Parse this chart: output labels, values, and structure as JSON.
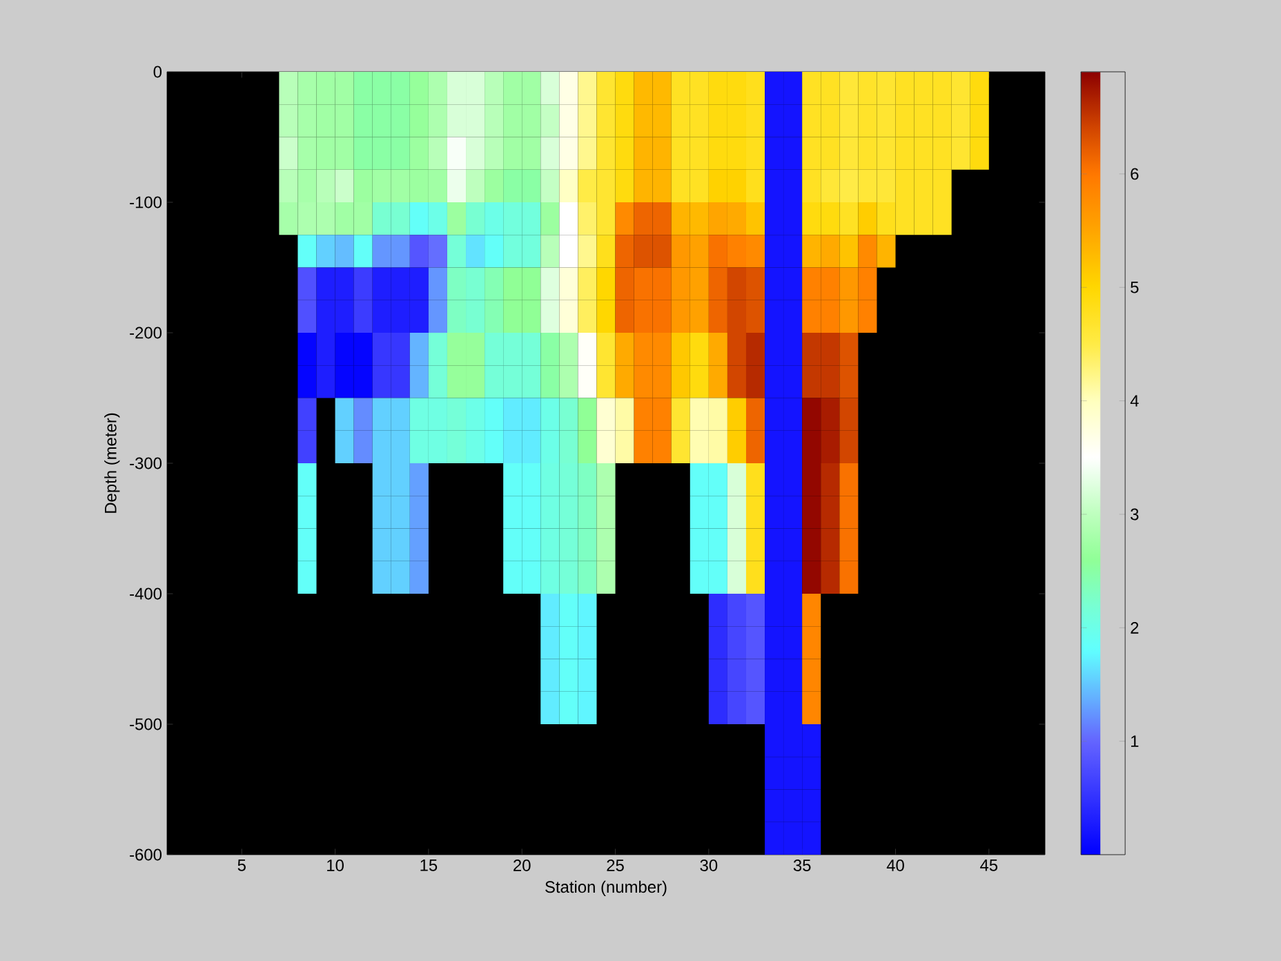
{
  "chart_data": {
    "type": "heatmap",
    "xlabel": "Station (number)",
    "ylabel": "Depth (meter)",
    "cells": [
      [
        null,
        null,
        null,
        null,
        null,
        null,
        2.95,
        2.8,
        2.75,
        2.75,
        2.5,
        2.5,
        2.5,
        2.65,
        2.85,
        3.2,
        3.2,
        2.95,
        2.75,
        2.75,
        3.2,
        3.7,
        4.2,
        4.65,
        4.9,
        5.3,
        5.3,
        4.75,
        4.75,
        4.9,
        4.9,
        4.8,
        0.2,
        0.2,
        4.75,
        4.75,
        4.6,
        4.7,
        4.65,
        4.75,
        4.75,
        4.75,
        4.65,
        4.9,
        null,
        null,
        null
      ],
      [
        null,
        null,
        null,
        null,
        null,
        null,
        2.95,
        2.8,
        2.75,
        2.75,
        2.5,
        2.5,
        2.5,
        2.65,
        2.85,
        3.2,
        3.2,
        2.95,
        2.75,
        2.75,
        3.05,
        3.7,
        4.2,
        4.65,
        4.9,
        5.3,
        5.3,
        4.75,
        4.75,
        4.9,
        4.9,
        4.8,
        0.2,
        0.2,
        4.75,
        4.75,
        4.6,
        4.7,
        4.65,
        4.75,
        4.75,
        4.75,
        4.65,
        4.9,
        null,
        null,
        null
      ],
      [
        null,
        null,
        null,
        null,
        null,
        null,
        3.1,
        2.8,
        2.75,
        2.75,
        2.5,
        2.5,
        2.5,
        2.7,
        2.95,
        3.45,
        3.2,
        2.95,
        2.75,
        2.75,
        3.2,
        3.7,
        4.2,
        4.65,
        4.9,
        5.35,
        5.35,
        4.75,
        4.75,
        4.9,
        4.9,
        4.8,
        0.2,
        0.2,
        4.75,
        4.75,
        4.6,
        4.7,
        4.65,
        4.75,
        4.75,
        4.75,
        4.65,
        4.9,
        null,
        null,
        null
      ],
      [
        null,
        null,
        null,
        null,
        null,
        null,
        2.95,
        2.8,
        2.95,
        3.1,
        2.7,
        2.75,
        2.75,
        2.7,
        2.75,
        3.35,
        3.0,
        2.7,
        2.5,
        2.5,
        3.05,
        3.95,
        4.5,
        4.65,
        4.9,
        5.35,
        5.35,
        4.75,
        4.75,
        5.05,
        5.05,
        4.8,
        0.2,
        0.2,
        4.75,
        4.6,
        4.5,
        4.6,
        4.6,
        4.75,
        4.75,
        4.75,
        null,
        null,
        null,
        null,
        null
      ],
      [
        null,
        null,
        null,
        null,
        null,
        null,
        2.8,
        2.85,
        2.85,
        2.75,
        2.75,
        2.2,
        2.2,
        1.85,
        2.0,
        2.7,
        2.2,
        2.0,
        2.1,
        2.1,
        2.7,
        3.5,
        4.35,
        4.65,
        5.8,
        6.15,
        6.15,
        5.35,
        5.3,
        5.5,
        5.45,
        5.2,
        0.2,
        0.2,
        4.9,
        4.9,
        4.75,
        5.1,
        4.8,
        4.75,
        4.75,
        4.75,
        null,
        null,
        null,
        null,
        null
      ],
      [
        null,
        null,
        null,
        null,
        null,
        null,
        null,
        1.85,
        1.55,
        1.45,
        1.85,
        1.25,
        1.25,
        0.85,
        1.05,
        2.15,
        1.65,
        1.85,
        2.1,
        2.1,
        2.95,
        3.5,
        4.2,
        4.8,
        6.15,
        6.3,
        6.3,
        5.65,
        5.55,
        6.05,
        5.9,
        5.8,
        0.2,
        0.2,
        5.35,
        5.45,
        5.2,
        5.8,
        5.35,
        null,
        null,
        null,
        null,
        null,
        null,
        null,
        null
      ],
      [
        null,
        null,
        null,
        null,
        null,
        null,
        null,
        0.8,
        0.3,
        0.3,
        0.6,
        0.3,
        0.3,
        0.3,
        1.25,
        2.3,
        2.2,
        2.4,
        2.6,
        2.6,
        3.25,
        3.8,
        4.4,
        5.0,
        6.15,
        6.05,
        6.05,
        5.65,
        5.55,
        6.15,
        6.4,
        6.3,
        0.2,
        0.2,
        5.9,
        5.9,
        5.65,
        5.9,
        null,
        null,
        null,
        null,
        null,
        null,
        null,
        null,
        null
      ],
      [
        null,
        null,
        null,
        null,
        null,
        null,
        null,
        0.8,
        0.3,
        0.3,
        0.6,
        0.3,
        0.3,
        0.3,
        1.25,
        2.3,
        2.2,
        2.4,
        2.6,
        2.6,
        3.25,
        3.8,
        4.4,
        5.0,
        6.15,
        6.05,
        6.05,
        5.65,
        5.55,
        6.15,
        6.4,
        6.3,
        0.2,
        0.2,
        5.9,
        5.9,
        5.65,
        5.9,
        null,
        null,
        null,
        null,
        null,
        null,
        null,
        null,
        null
      ],
      [
        null,
        null,
        null,
        null,
        null,
        null,
        null,
        0.05,
        0.3,
        0.05,
        0.05,
        0.55,
        0.55,
        1.4,
        2.15,
        2.65,
        2.65,
        2.15,
        2.15,
        2.15,
        2.5,
        2.85,
        3.55,
        4.65,
        5.45,
        5.8,
        5.8,
        5.15,
        4.9,
        5.45,
        6.4,
        6.6,
        0.2,
        0.2,
        6.5,
        6.5,
        6.3,
        null,
        null,
        null,
        null,
        null,
        null,
        null,
        null,
        null,
        null
      ],
      [
        null,
        null,
        null,
        null,
        null,
        null,
        null,
        0.05,
        0.3,
        0.05,
        0.05,
        0.55,
        0.55,
        1.4,
        2.15,
        2.65,
        2.65,
        2.15,
        2.15,
        2.15,
        2.5,
        2.85,
        3.55,
        4.65,
        5.45,
        5.8,
        5.8,
        5.15,
        4.9,
        5.45,
        6.4,
        6.6,
        0.2,
        0.2,
        6.5,
        6.5,
        6.3,
        null,
        null,
        null,
        null,
        null,
        null,
        null,
        null,
        null,
        null
      ],
      [
        null,
        null,
        null,
        null,
        null,
        null,
        null,
        0.65,
        null,
        1.55,
        1.2,
        1.55,
        1.55,
        2.05,
        2.05,
        2.15,
        2.0,
        1.85,
        1.7,
        1.7,
        2.0,
        2.2,
        2.6,
        3.85,
        4.1,
        5.9,
        5.9,
        4.65,
        4.05,
        4.1,
        5.1,
        6.15,
        0.2,
        0.2,
        6.85,
        6.7,
        6.4,
        null,
        null,
        null,
        null,
        null,
        null,
        null,
        null,
        null,
        null
      ],
      [
        null,
        null,
        null,
        null,
        null,
        null,
        null,
        0.65,
        null,
        1.55,
        1.2,
        1.55,
        1.55,
        2.05,
        2.05,
        2.15,
        2.0,
        1.85,
        1.7,
        1.7,
        2.0,
        2.2,
        2.6,
        3.85,
        4.1,
        5.9,
        5.9,
        4.65,
        4.05,
        4.1,
        5.1,
        6.15,
        0.2,
        0.2,
        6.85,
        6.7,
        6.4,
        null,
        null,
        null,
        null,
        null,
        null,
        null,
        null,
        null,
        null
      ],
      [
        null,
        null,
        null,
        null,
        null,
        null,
        null,
        1.85,
        null,
        null,
        null,
        1.55,
        1.55,
        1.3,
        null,
        null,
        null,
        null,
        1.85,
        1.85,
        2.05,
        2.15,
        2.3,
        2.85,
        null,
        null,
        null,
        null,
        1.85,
        1.85,
        3.2,
        4.8,
        0.2,
        0.2,
        6.85,
        6.6,
        6.05,
        null,
        null,
        null,
        null,
        null,
        null,
        null,
        null,
        null,
        null
      ],
      [
        null,
        null,
        null,
        null,
        null,
        null,
        null,
        1.85,
        null,
        null,
        null,
        1.55,
        1.55,
        1.3,
        null,
        null,
        null,
        null,
        1.85,
        1.85,
        2.05,
        2.15,
        2.3,
        2.85,
        null,
        null,
        null,
        null,
        1.85,
        1.85,
        3.2,
        4.8,
        0.2,
        0.2,
        6.85,
        6.6,
        6.05,
        null,
        null,
        null,
        null,
        null,
        null,
        null,
        null,
        null,
        null
      ],
      [
        null,
        null,
        null,
        null,
        null,
        null,
        null,
        1.85,
        null,
        null,
        null,
        1.55,
        1.55,
        1.3,
        null,
        null,
        null,
        null,
        1.85,
        1.85,
        2.05,
        2.15,
        2.3,
        2.85,
        null,
        null,
        null,
        null,
        1.85,
        1.85,
        3.2,
        4.8,
        0.2,
        0.2,
        6.85,
        6.6,
        6.05,
        null,
        null,
        null,
        null,
        null,
        null,
        null,
        null,
        null,
        null
      ],
      [
        null,
        null,
        null,
        null,
        null,
        null,
        null,
        1.85,
        null,
        null,
        null,
        1.55,
        1.55,
        1.3,
        null,
        null,
        null,
        null,
        1.85,
        1.85,
        2.05,
        2.15,
        2.3,
        2.85,
        null,
        null,
        null,
        null,
        1.85,
        1.85,
        3.2,
        4.8,
        0.2,
        0.2,
        6.85,
        6.6,
        6.05,
        null,
        null,
        null,
        null,
        null,
        null,
        null,
        null,
        null,
        null
      ],
      [
        null,
        null,
        null,
        null,
        null,
        null,
        null,
        null,
        null,
        null,
        null,
        null,
        null,
        null,
        null,
        null,
        null,
        null,
        null,
        null,
        1.7,
        1.85,
        1.75,
        null,
        null,
        null,
        null,
        null,
        null,
        0.45,
        0.7,
        0.85,
        0.2,
        0.2,
        5.85,
        null,
        null,
        null,
        null,
        null,
        null,
        null,
        null,
        null,
        null,
        null,
        null
      ],
      [
        null,
        null,
        null,
        null,
        null,
        null,
        null,
        null,
        null,
        null,
        null,
        null,
        null,
        null,
        null,
        null,
        null,
        null,
        null,
        null,
        1.7,
        1.85,
        1.75,
        null,
        null,
        null,
        null,
        null,
        null,
        0.45,
        0.7,
        0.85,
        0.2,
        0.2,
        5.85,
        null,
        null,
        null,
        null,
        null,
        null,
        null,
        null,
        null,
        null,
        null,
        null
      ],
      [
        null,
        null,
        null,
        null,
        null,
        null,
        null,
        null,
        null,
        null,
        null,
        null,
        null,
        null,
        null,
        null,
        null,
        null,
        null,
        null,
        1.7,
        1.85,
        1.75,
        null,
        null,
        null,
        null,
        null,
        null,
        0.45,
        0.7,
        0.85,
        0.2,
        0.2,
        5.85,
        null,
        null,
        null,
        null,
        null,
        null,
        null,
        null,
        null,
        null,
        null,
        null
      ],
      [
        null,
        null,
        null,
        null,
        null,
        null,
        null,
        null,
        null,
        null,
        null,
        null,
        null,
        null,
        null,
        null,
        null,
        null,
        null,
        null,
        1.7,
        1.85,
        1.75,
        null,
        null,
        null,
        null,
        null,
        null,
        0.45,
        0.7,
        0.85,
        0.2,
        0.2,
        5.85,
        null,
        null,
        null,
        null,
        null,
        null,
        null,
        null,
        null,
        null,
        null,
        null
      ],
      [
        null,
        null,
        null,
        null,
        null,
        null,
        null,
        null,
        null,
        null,
        null,
        null,
        null,
        null,
        null,
        null,
        null,
        null,
        null,
        null,
        null,
        null,
        null,
        null,
        null,
        null,
        null,
        null,
        null,
        null,
        null,
        null,
        0.2,
        0.2,
        0.2,
        null,
        null,
        null,
        null,
        null,
        null,
        null,
        null,
        null,
        null,
        null,
        null
      ],
      [
        null,
        null,
        null,
        null,
        null,
        null,
        null,
        null,
        null,
        null,
        null,
        null,
        null,
        null,
        null,
        null,
        null,
        null,
        null,
        null,
        null,
        null,
        null,
        null,
        null,
        null,
        null,
        null,
        null,
        null,
        null,
        null,
        0.2,
        0.2,
        0.2,
        null,
        null,
        null,
        null,
        null,
        null,
        null,
        null,
        null,
        null,
        null,
        null
      ],
      [
        null,
        null,
        null,
        null,
        null,
        null,
        null,
        null,
        null,
        null,
        null,
        null,
        null,
        null,
        null,
        null,
        null,
        null,
        null,
        null,
        null,
        null,
        null,
        null,
        null,
        null,
        null,
        null,
        null,
        null,
        null,
        null,
        0.2,
        0.2,
        0.2,
        null,
        null,
        null,
        null,
        null,
        null,
        null,
        null,
        null,
        null,
        null,
        null
      ],
      [
        null,
        null,
        null,
        null,
        null,
        null,
        null,
        null,
        null,
        null,
        null,
        null,
        null,
        null,
        null,
        null,
        null,
        null,
        null,
        null,
        null,
        null,
        null,
        null,
        null,
        null,
        null,
        null,
        null,
        null,
        null,
        null,
        0.2,
        0.2,
        0.2,
        null,
        null,
        null,
        null,
        null,
        null,
        null,
        null,
        null,
        null,
        null,
        null
      ]
    ],
    "clim": [
      0,
      6.9
    ],
    "cticks": [
      1,
      2,
      3,
      4,
      5,
      6
    ],
    "xlim": [
      1,
      48
    ],
    "ylim": [
      -600,
      0
    ],
    "xticks": [
      5,
      10,
      15,
      20,
      25,
      30,
      35,
      40,
      45
    ],
    "yticks": [
      -600,
      -500,
      -400,
      -300,
      -200,
      -100,
      0
    ]
  }
}
